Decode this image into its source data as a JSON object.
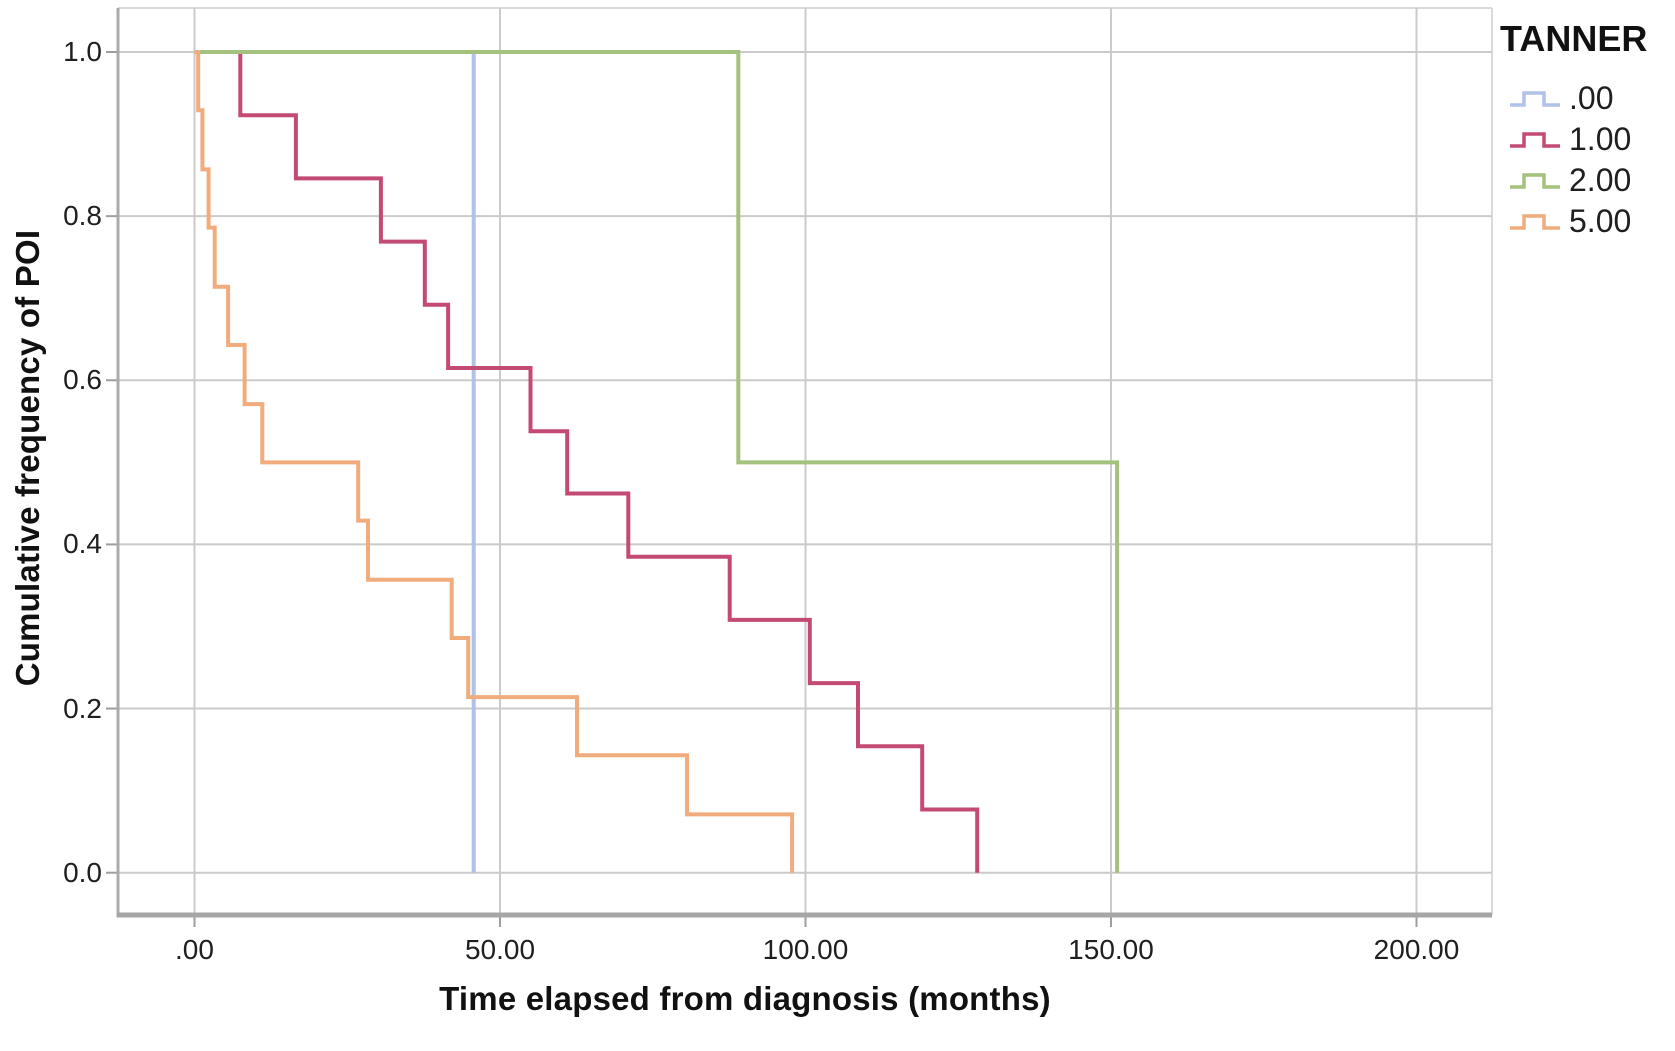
{
  "axes": {
    "x_label": "Time elapsed from diagnosis (months)",
    "y_label": "Cumulative frequency of POI",
    "x_ticks": [
      ".00",
      "50.00",
      "100.00",
      "150.00",
      "200.00"
    ],
    "x_tick_values": [
      0,
      50,
      100,
      150,
      200
    ],
    "y_ticks": [
      "0.0",
      "0.2",
      "0.4",
      "0.6",
      "0.8",
      "1.0"
    ],
    "y_tick_values": [
      0.0,
      0.2,
      0.4,
      0.6,
      0.8,
      1.0
    ]
  },
  "legend": {
    "title": "TANNER",
    "entries": [
      ".00",
      "1.00",
      "2.00",
      "5.00"
    ],
    "position": "right-top"
  },
  "colors": {
    "group_000": "#b1c2e8",
    "group_100": "#c44a76",
    "group_200": "#a5c17e",
    "group_500": "#f0ac7c",
    "gridline": "#cbcbcb",
    "axis_line": "#a6a6a6",
    "frame_line": "#dadada",
    "text": "#1a1a1a"
  },
  "chart_data": {
    "type": "line",
    "subtype": "step-survival",
    "title": "",
    "xlabel": "Time elapsed from diagnosis (months)",
    "ylabel": "Cumulative frequency of POI",
    "xlim": [
      -12.5,
      212.5
    ],
    "ylim": [
      -0.05,
      1.05
    ],
    "grid": true,
    "legend_title": "TANNER",
    "legend_position": "right-top",
    "x_tick_values": [
      0,
      50,
      100,
      150,
      200
    ],
    "y_tick_values": [
      0.0,
      0.2,
      0.4,
      0.6,
      0.8,
      1.0
    ],
    "series": [
      {
        "name": ".00",
        "color": "#b1c2e8",
        "points": [
          [
            0,
            1.0
          ],
          [
            45.7,
            1.0
          ],
          [
            45.7,
            0.0
          ]
        ]
      },
      {
        "name": "1.00",
        "color": "#c44a76",
        "points": [
          [
            0,
            1.0
          ],
          [
            7.5,
            1.0
          ],
          [
            7.5,
            0.923
          ],
          [
            16.6,
            0.923
          ],
          [
            16.6,
            0.846
          ],
          [
            30.5,
            0.846
          ],
          [
            30.5,
            0.769
          ],
          [
            37.7,
            0.769
          ],
          [
            37.7,
            0.692
          ],
          [
            41.5,
            0.692
          ],
          [
            41.5,
            0.615
          ],
          [
            55,
            0.615
          ],
          [
            55,
            0.538
          ],
          [
            61,
            0.538
          ],
          [
            61,
            0.462
          ],
          [
            71,
            0.462
          ],
          [
            71,
            0.385
          ],
          [
            87.6,
            0.385
          ],
          [
            87.6,
            0.308
          ],
          [
            100.7,
            0.308
          ],
          [
            100.7,
            0.231
          ],
          [
            108.6,
            0.231
          ],
          [
            108.6,
            0.154
          ],
          [
            119.1,
            0.154
          ],
          [
            119.1,
            0.077
          ],
          [
            128.1,
            0.077
          ],
          [
            128.1,
            0.0
          ]
        ]
      },
      {
        "name": "2.00",
        "color": "#a5c17e",
        "points": [
          [
            0,
            1.0
          ],
          [
            89,
            1.0
          ],
          [
            89,
            0.5
          ],
          [
            151,
            0.5
          ],
          [
            151,
            0.0
          ]
        ]
      },
      {
        "name": "5.00",
        "color": "#f0ac7c",
        "points": [
          [
            0,
            1.0
          ],
          [
            0.6,
            1.0
          ],
          [
            0.6,
            0.929
          ],
          [
            1.3,
            0.929
          ],
          [
            1.3,
            0.857
          ],
          [
            2.3,
            0.857
          ],
          [
            2.3,
            0.786
          ],
          [
            3.3,
            0.786
          ],
          [
            3.3,
            0.714
          ],
          [
            5.5,
            0.714
          ],
          [
            5.5,
            0.643
          ],
          [
            8.2,
            0.643
          ],
          [
            8.2,
            0.571
          ],
          [
            11.1,
            0.571
          ],
          [
            11.1,
            0.5
          ],
          [
            26.8,
            0.5
          ],
          [
            26.8,
            0.429
          ],
          [
            28.4,
            0.429
          ],
          [
            28.4,
            0.357
          ],
          [
            42.1,
            0.357
          ],
          [
            42.1,
            0.286
          ],
          [
            44.8,
            0.286
          ],
          [
            44.8,
            0.214
          ],
          [
            62.6,
            0.214
          ],
          [
            62.6,
            0.143
          ],
          [
            80.6,
            0.143
          ],
          [
            80.6,
            0.071
          ],
          [
            97.8,
            0.071
          ],
          [
            97.8,
            0.0
          ]
        ]
      }
    ]
  }
}
